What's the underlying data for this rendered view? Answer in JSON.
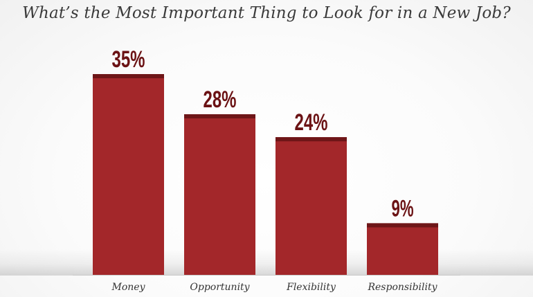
{
  "chart_data": {
    "type": "bar",
    "title": "What’s the Most Important Thing to Look for in a New Job?",
    "categories": [
      "Money",
      "Opportunity",
      "Flexibility",
      "Responsibility"
    ],
    "values": [
      35,
      28,
      24,
      9
    ],
    "value_labels": [
      "35%",
      "28%",
      "24%",
      "9%"
    ],
    "xlabel": "",
    "ylabel": "",
    "ylim": [
      0,
      35
    ],
    "grid": false,
    "legend": "none"
  },
  "colors": {
    "bar": "#a3272a",
    "bar_cap": "#6e1618",
    "value_text": "#6b1214",
    "title_text": "#3a3a3a"
  }
}
